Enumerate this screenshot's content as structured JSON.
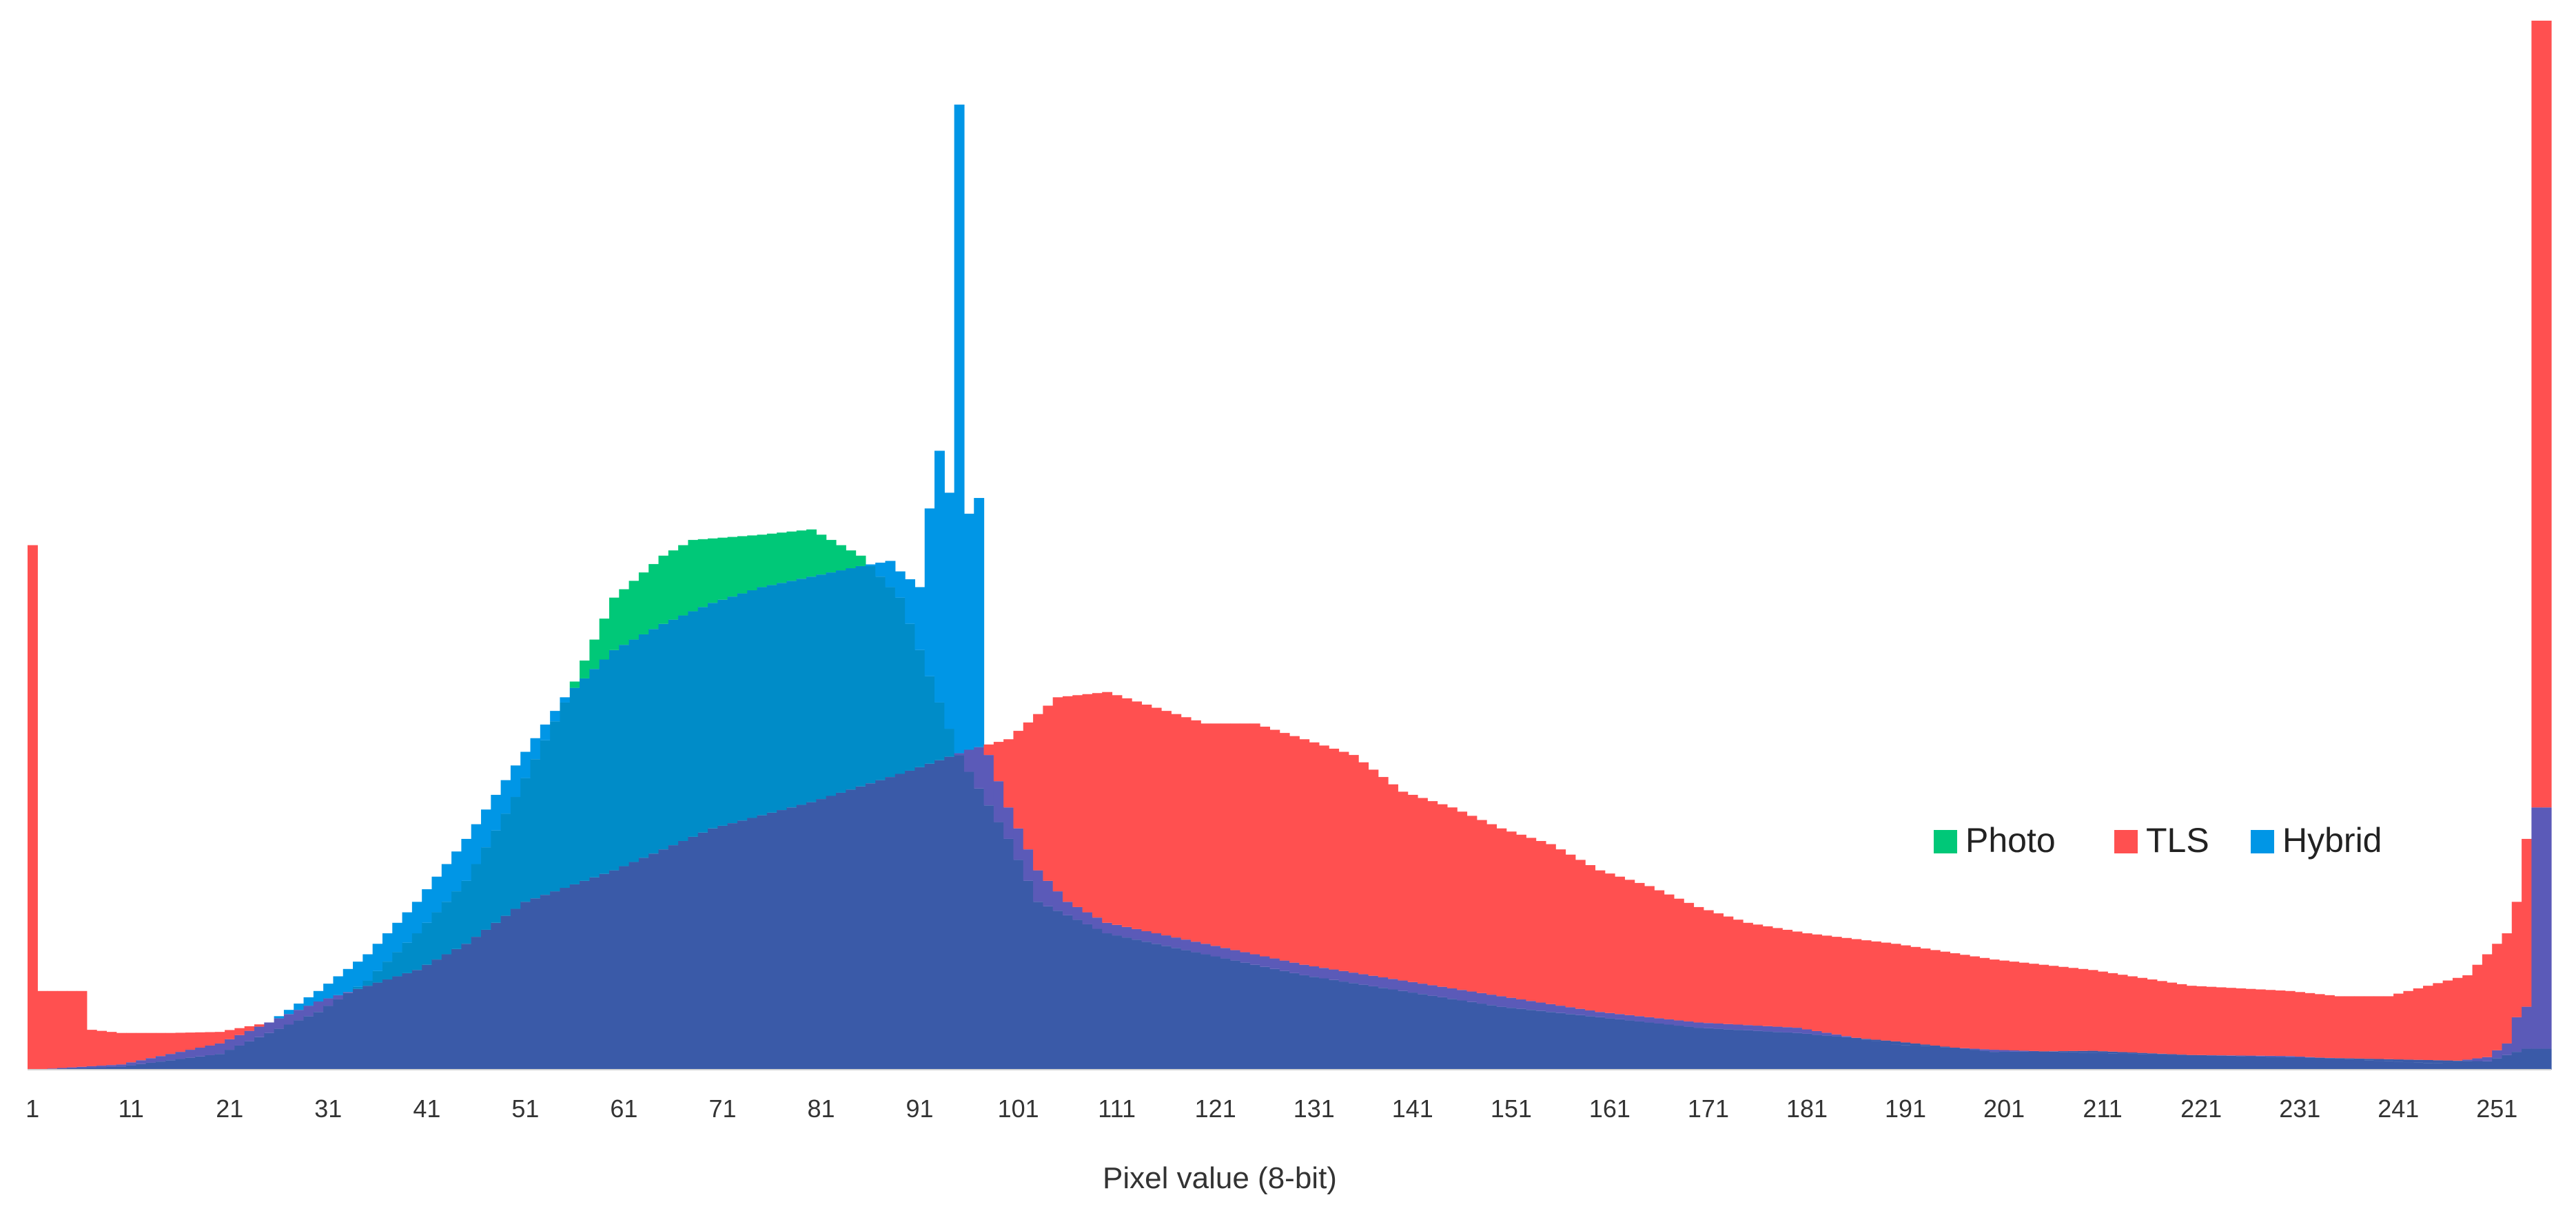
{
  "chart_data": {
    "type": "bar",
    "subtype": "overlapping-histogram",
    "title": "",
    "xlabel": "Pixel value (8-bit)",
    "ylabel": "",
    "xlim": [
      1,
      256
    ],
    "ylim": [
      0,
      100
    ],
    "grid": false,
    "legend": "right-middle",
    "x_tick_labels": [
      "1",
      "11",
      "21",
      "31",
      "41",
      "51",
      "61",
      "71",
      "81",
      "91",
      "101",
      "111",
      "121",
      "131",
      "141",
      "151",
      "161",
      "171",
      "181",
      "191",
      "201",
      "211",
      "221",
      "231",
      "241",
      "251"
    ],
    "colors": {
      "photo": "#00c878",
      "tls": "#ff5050",
      "hybrid": "#0096e6",
      "overlap_all": "#3a5aa8",
      "overlap_photo_hybrid": "#008cc8",
      "overlap_tls_hybrid": "#5b5ab8"
    },
    "series": [
      {
        "name": "Photo",
        "points": [
          [
            1,
            0
          ],
          [
            10,
            0.3
          ],
          [
            20,
            1.5
          ],
          [
            30,
            5.5
          ],
          [
            35,
            8.5
          ],
          [
            40,
            13
          ],
          [
            45,
            18
          ],
          [
            50,
            26
          ],
          [
            55,
            35
          ],
          [
            60,
            45
          ],
          [
            65,
            49
          ],
          [
            68,
            50.5
          ],
          [
            75,
            51
          ],
          [
            80,
            51.5
          ],
          [
            85,
            49
          ],
          [
            89,
            45
          ],
          [
            91,
            40
          ],
          [
            95,
            30
          ],
          [
            100,
            22
          ],
          [
            103,
            16
          ],
          [
            110,
            13
          ],
          [
            120,
            11
          ],
          [
            130,
            9
          ],
          [
            140,
            7.5
          ],
          [
            150,
            6
          ],
          [
            160,
            5
          ],
          [
            170,
            4
          ],
          [
            180,
            3.5
          ],
          [
            190,
            2.7
          ],
          [
            200,
            1.7
          ],
          [
            210,
            1.8
          ],
          [
            220,
            1.4
          ],
          [
            230,
            1.2
          ],
          [
            240,
            1
          ],
          [
            250,
            0.8
          ],
          [
            254,
            2
          ],
          [
            256,
            2
          ]
        ]
      },
      {
        "name": "TLS",
        "points": [
          [
            1,
            50
          ],
          [
            2,
            7.5
          ],
          [
            4,
            7.5
          ],
          [
            6,
            7.5
          ],
          [
            7,
            3.8
          ],
          [
            10,
            3.5
          ],
          [
            15,
            3.5
          ],
          [
            20,
            3.6
          ],
          [
            25,
            4.5
          ],
          [
            30,
            6.5
          ],
          [
            40,
            9.5
          ],
          [
            45,
            12
          ],
          [
            51,
            16
          ],
          [
            60,
            19
          ],
          [
            70,
            23
          ],
          [
            80,
            25.5
          ],
          [
            90,
            28.5
          ],
          [
            96,
            30.5
          ],
          [
            100,
            31.5
          ],
          [
            105,
            35.5
          ],
          [
            110,
            36
          ],
          [
            115,
            34.5
          ],
          [
            120,
            33
          ],
          [
            125,
            33
          ],
          [
            130,
            31.5
          ],
          [
            135,
            30
          ],
          [
            140,
            26.5
          ],
          [
            145,
            25
          ],
          [
            150,
            23
          ],
          [
            155,
            21.5
          ],
          [
            160,
            19
          ],
          [
            165,
            17.5
          ],
          [
            170,
            15.5
          ],
          [
            175,
            14
          ],
          [
            181,
            13
          ],
          [
            190,
            12
          ],
          [
            200,
            10.5
          ],
          [
            210,
            9.5
          ],
          [
            220,
            8
          ],
          [
            230,
            7.5
          ],
          [
            235,
            7
          ],
          [
            240,
            7
          ],
          [
            244,
            8
          ],
          [
            248,
            9
          ],
          [
            250,
            11
          ],
          [
            252,
            13
          ],
          [
            253,
            16
          ],
          [
            254,
            22
          ],
          [
            255,
            100
          ],
          [
            256,
            100
          ]
        ]
      },
      {
        "name": "Hybrid",
        "points": [
          [
            1,
            0
          ],
          [
            10,
            0.5
          ],
          [
            20,
            2.5
          ],
          [
            25,
            4.5
          ],
          [
            30,
            7.5
          ],
          [
            35,
            11
          ],
          [
            40,
            16
          ],
          [
            45,
            22
          ],
          [
            50,
            29
          ],
          [
            55,
            35.5
          ],
          [
            60,
            40
          ],
          [
            65,
            42.5
          ],
          [
            70,
            44.5
          ],
          [
            75,
            46
          ],
          [
            80,
            47
          ],
          [
            85,
            48
          ],
          [
            88,
            48.5
          ],
          [
            89,
            47.5
          ],
          [
            91,
            46
          ],
          [
            92,
            53.5
          ],
          [
            93,
            59
          ],
          [
            94,
            55
          ],
          [
            95,
            92
          ],
          [
            96,
            53
          ],
          [
            97,
            54.5
          ],
          [
            98,
            30
          ],
          [
            100,
            25
          ],
          [
            103,
            19
          ],
          [
            106,
            16
          ],
          [
            110,
            14
          ],
          [
            120,
            12
          ],
          [
            130,
            10
          ],
          [
            140,
            8.5
          ],
          [
            150,
            7
          ],
          [
            160,
            5.5
          ],
          [
            170,
            4.5
          ],
          [
            180,
            4
          ],
          [
            185,
            3.2
          ],
          [
            190,
            2.4
          ],
          [
            200,
            1.9
          ],
          [
            210,
            1.6
          ],
          [
            220,
            1.4
          ],
          [
            230,
            1.3
          ],
          [
            240,
            0.8
          ],
          [
            245,
            0.6
          ],
          [
            250,
            1.2
          ],
          [
            252,
            2.5
          ],
          [
            253,
            5
          ],
          [
            254,
            6
          ],
          [
            255,
            25
          ],
          [
            256,
            25
          ]
        ]
      }
    ]
  }
}
